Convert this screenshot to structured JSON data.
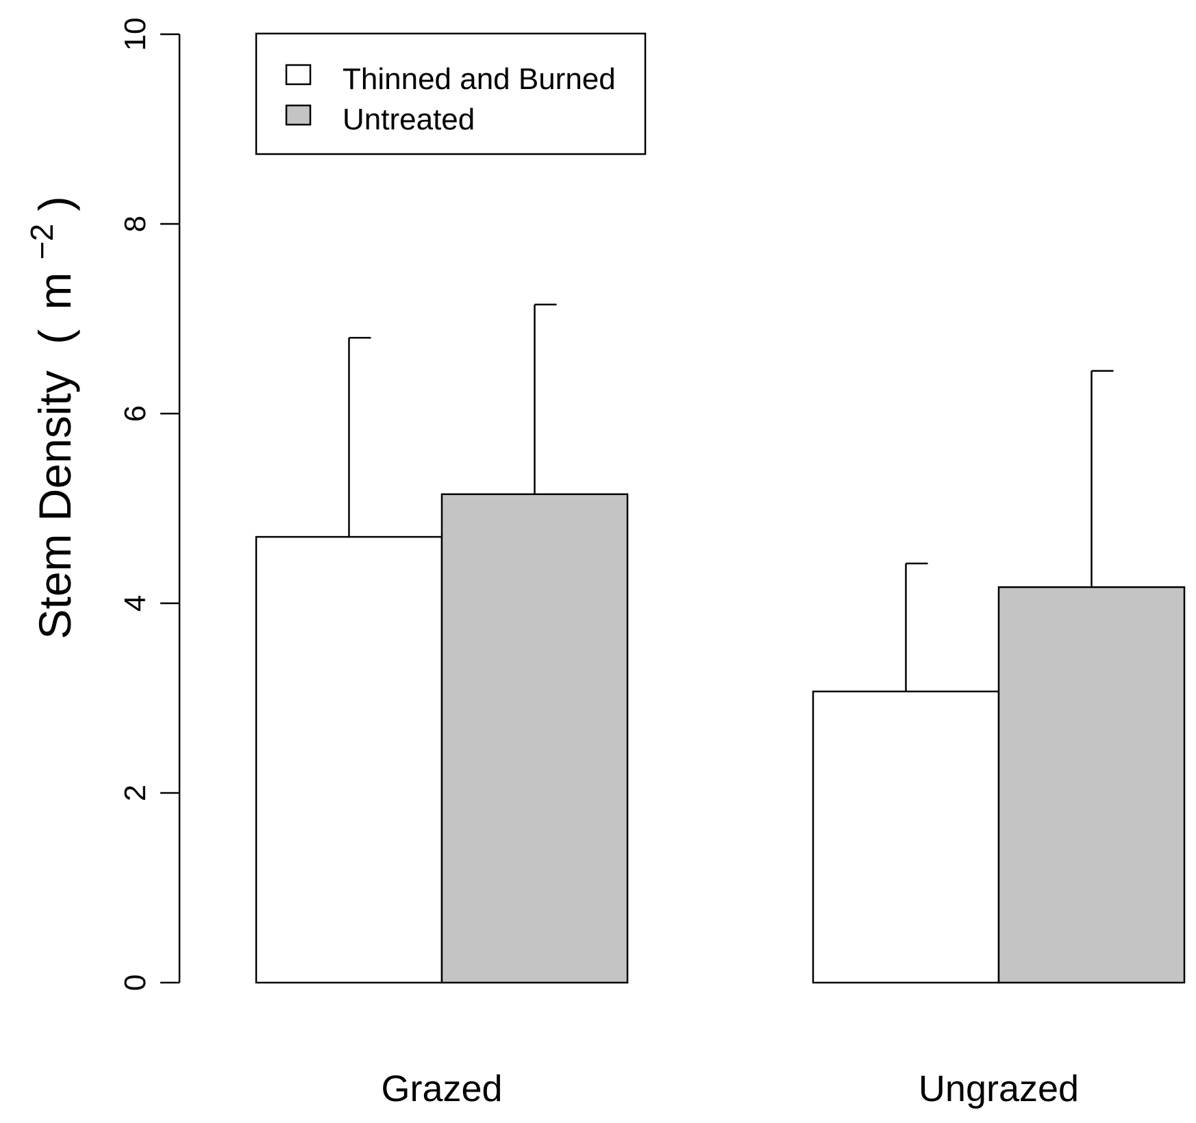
{
  "chart_data": {
    "type": "bar",
    "categories": [
      "Grazed",
      "Ungrazed"
    ],
    "series": [
      {
        "name": "Thinned and Burned",
        "color": "#ffffff",
        "values": [
          4.7,
          3.07
        ],
        "error_upper": [
          6.8,
          4.42
        ]
      },
      {
        "name": "Untreated",
        "color": "#c4c4c4",
        "values": [
          5.15,
          4.17
        ],
        "error_upper": [
          7.15,
          6.45
        ]
      }
    ],
    "ylabel": "Stem Density",
    "ylabel_unit_base": "m",
    "ylabel_unit_exponent": "−2",
    "ylim": [
      0,
      10
    ],
    "yticks": [
      0,
      2,
      4,
      6,
      8,
      10
    ],
    "ytick_labels": [
      "0",
      "2",
      "4",
      "6",
      "8",
      "10"
    ],
    "legend_position": "top-left",
    "grid": false
  }
}
